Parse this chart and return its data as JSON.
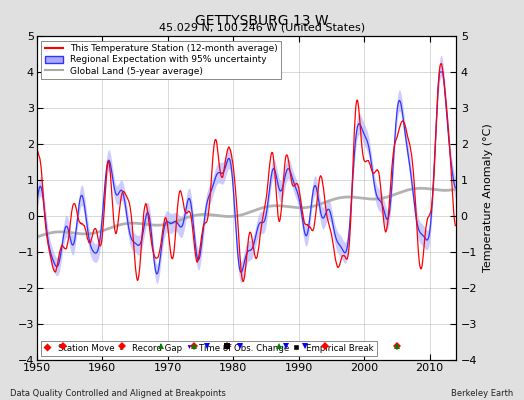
{
  "title": "GETTYSBURG 13 W",
  "subtitle": "45.029 N, 100.246 W (United States)",
  "xlabel_left": "Data Quality Controlled and Aligned at Breakpoints",
  "xlabel_right": "Berkeley Earth",
  "ylabel": "Temperature Anomaly (°C)",
  "xlim": [
    1950,
    2014
  ],
  "ylim": [
    -4,
    5
  ],
  "yticks": [
    -4,
    -3,
    -2,
    -1,
    0,
    1,
    2,
    3,
    4,
    5
  ],
  "xticks": [
    1950,
    1960,
    1970,
    1980,
    1990,
    2000,
    2010
  ],
  "station_line_color": "#FF0000",
  "regional_line_color": "#3333FF",
  "regional_fill_color": "#AAAAFF",
  "global_line_color": "#AAAAAA",
  "background_color": "#E0E0E0",
  "plot_bg_color": "#FFFFFF",
  "grid_color": "#BBBBBB",
  "station_move_color": "#FF0000",
  "record_gap_color": "#008000",
  "time_obs_color": "#0000FF",
  "empirical_break_color": "#000000",
  "station_moves": [
    1954,
    1963,
    1974,
    1979,
    1994,
    2005
  ],
  "record_gaps": [
    1969,
    1974,
    1987,
    2005
  ],
  "time_obs_changes": [
    1976,
    1981,
    1988,
    1991
  ],
  "empirical_breaks": [
    1979
  ],
  "marker_y": -3.6,
  "figsize": [
    5.24,
    4.0
  ],
  "dpi": 100
}
